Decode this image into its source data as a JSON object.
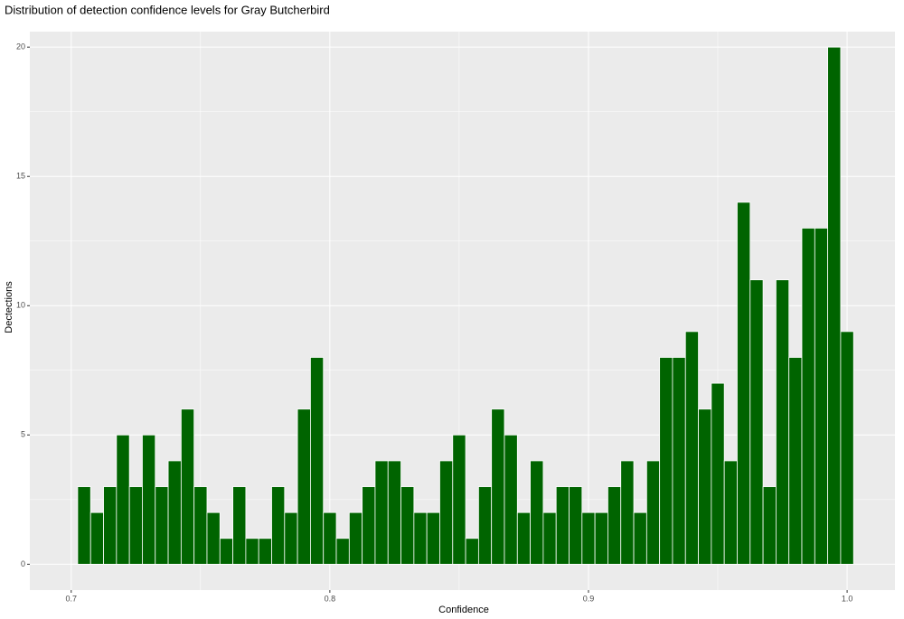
{
  "chart_data": {
    "type": "histogram",
    "title": "Distribution of detection confidence levels for Gray Butcherbird",
    "x_label": "Confidence",
    "y_label": "Dectections",
    "bins": [
      0.7025,
      0.7075,
      0.7125,
      0.7175,
      0.7225,
      0.7275,
      0.7325,
      0.7375,
      0.7425,
      0.7475,
      0.7525,
      0.7575,
      0.7625,
      0.7675,
      0.7725,
      0.7775,
      0.7825,
      0.7875,
      0.7925,
      0.7975,
      0.8025,
      0.8075,
      0.8125,
      0.8175,
      0.8225,
      0.8275,
      0.8325,
      0.8375,
      0.8425,
      0.8475,
      0.8525,
      0.8575,
      0.8625,
      0.8675,
      0.8725,
      0.8775,
      0.8825,
      0.8875,
      0.8925,
      0.8975,
      0.9025,
      0.9075,
      0.9125,
      0.9175,
      0.9225,
      0.9275,
      0.9325,
      0.9375,
      0.9425,
      0.9475,
      0.9525,
      0.9575,
      0.9625,
      0.9675,
      0.9725,
      0.9775,
      0.9825,
      0.9875,
      0.9925,
      0.9975,
      1.0025
    ],
    "values": [
      3,
      2,
      3,
      5,
      3,
      5,
      3,
      4,
      6,
      3,
      2,
      1,
      3,
      1,
      1,
      3,
      2,
      6,
      8,
      2,
      1,
      2,
      3,
      4,
      4,
      3,
      2,
      2,
      4,
      5,
      1,
      3,
      6,
      5,
      2,
      4,
      2,
      3,
      3,
      2,
      2,
      3,
      4,
      2,
      4,
      8,
      8,
      9,
      6,
      7,
      4,
      14,
      11,
      3,
      11,
      8,
      13,
      13,
      20,
      9
    ],
    "color": "#006400",
    "xlim": [
      0.684,
      1.0185
    ],
    "xticks": [
      0.7,
      0.8,
      0.9,
      {
        "value": 1,
        "label": "1.0"
      }
    ],
    "ylim": [
      -1,
      20.6
    ],
    "yticks": [
      0,
      5,
      10,
      15,
      20
    ],
    "grid": true
  }
}
